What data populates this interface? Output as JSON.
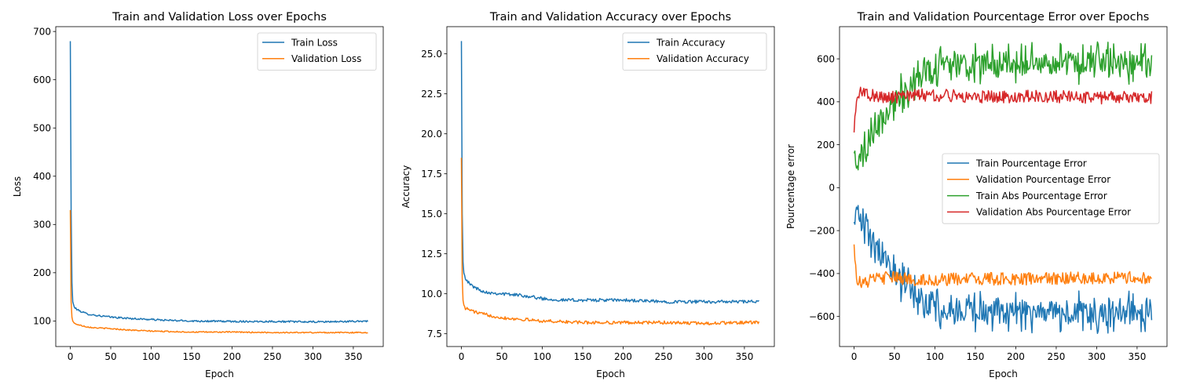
{
  "colors": {
    "blue": "#1f77b4",
    "orange": "#ff7f0e",
    "green": "#2ca02c",
    "red": "#d62728"
  },
  "chart_data": [
    {
      "type": "line",
      "title": "Train and Validation Loss over Epochs",
      "xlabel": "Epoch",
      "ylabel": "Loss",
      "xlim": [
        -18,
        387
      ],
      "ylim": [
        47,
        710
      ],
      "xticks": [
        0,
        50,
        100,
        150,
        200,
        250,
        300,
        350
      ],
      "yticks": [
        100,
        200,
        300,
        400,
        500,
        600,
        700
      ],
      "grid": false,
      "legend_position": "top-right",
      "series": [
        {
          "name": "Train Loss",
          "color": "#1f77b4",
          "points": [
            [
              0,
              680
            ],
            [
              1,
              330
            ],
            [
              2,
              180
            ],
            [
              3,
              140
            ],
            [
              5,
              128
            ],
            [
              10,
              122
            ],
            [
              20,
              115
            ],
            [
              30,
              112
            ],
            [
              50,
              108
            ],
            [
              75,
              105
            ],
            [
              100,
              103
            ],
            [
              125,
              101
            ],
            [
              150,
              100
            ],
            [
              200,
              99
            ],
            [
              250,
              99
            ],
            [
              300,
              98
            ],
            [
              350,
              99
            ],
            [
              368,
              100
            ]
          ]
        },
        {
          "name": "Validation Loss",
          "color": "#ff7f0e",
          "points": [
            [
              0,
              330
            ],
            [
              1,
              140
            ],
            [
              2,
              108
            ],
            [
              3,
              100
            ],
            [
              5,
              95
            ],
            [
              10,
              92
            ],
            [
              20,
              88
            ],
            [
              30,
              86
            ],
            [
              50,
              84
            ],
            [
              75,
              81
            ],
            [
              100,
              79
            ],
            [
              125,
              78
            ],
            [
              150,
              77
            ],
            [
              200,
              77
            ],
            [
              250,
              76
            ],
            [
              300,
              76
            ],
            [
              350,
              76
            ],
            [
              368,
              76
            ]
          ]
        }
      ]
    },
    {
      "type": "line",
      "title": "Train and Validation Accuracy over Epochs",
      "xlabel": "Epoch",
      "ylabel": "Accuracy",
      "xlim": [
        -18,
        387
      ],
      "ylim": [
        6.7,
        26.7
      ],
      "xticks": [
        0,
        50,
        100,
        150,
        200,
        250,
        300,
        350
      ],
      "yticks": [
        7.5,
        10.0,
        12.5,
        15.0,
        17.5,
        20.0,
        22.5,
        25.0
      ],
      "grid": false,
      "legend_position": "top-right",
      "series": [
        {
          "name": "Train Accuracy",
          "color": "#1f77b4",
          "points": [
            [
              0,
              25.8
            ],
            [
              1,
              15
            ],
            [
              2,
              12
            ],
            [
              3,
              11.3
            ],
            [
              5,
              11.0
            ],
            [
              10,
              10.6
            ],
            [
              20,
              10.3
            ],
            [
              30,
              10.1
            ],
            [
              50,
              10.0
            ],
            [
              75,
              9.9
            ],
            [
              100,
              9.7
            ],
            [
              125,
              9.6
            ],
            [
              150,
              9.6
            ],
            [
              200,
              9.6
            ],
            [
              250,
              9.5
            ],
            [
              300,
              9.5
            ],
            [
              350,
              9.5
            ],
            [
              368,
              9.5
            ]
          ]
        },
        {
          "name": "Validation Accuracy",
          "color": "#ff7f0e",
          "points": [
            [
              0,
              18.5
            ],
            [
              1,
              11
            ],
            [
              2,
              9.6
            ],
            [
              3,
              9.3
            ],
            [
              5,
              9.1
            ],
            [
              10,
              9.0
            ],
            [
              20,
              8.8
            ],
            [
              30,
              8.7
            ],
            [
              50,
              8.5
            ],
            [
              75,
              8.4
            ],
            [
              100,
              8.3
            ],
            [
              125,
              8.25
            ],
            [
              150,
              8.2
            ],
            [
              200,
              8.2
            ],
            [
              250,
              8.2
            ],
            [
              300,
              8.15
            ],
            [
              350,
              8.2
            ],
            [
              368,
              8.2
            ]
          ]
        }
      ]
    },
    {
      "type": "line",
      "title": "Train and Validation Pourcentage Error over Epochs",
      "xlabel": "Epoch",
      "ylabel": "Pourcentage error",
      "xlim": [
        -18,
        387
      ],
      "ylim": [
        -740,
        750
      ],
      "xticks": [
        0,
        50,
        100,
        150,
        200,
        250,
        300,
        350
      ],
      "yticks": [
        -600,
        -400,
        -200,
        0,
        200,
        400,
        600
      ],
      "grid": false,
      "legend_position": "center-right",
      "series": [
        {
          "name": "Train Pourcentage Error",
          "color": "#1f77b4",
          "points": [
            [
              0,
              -150
            ],
            [
              3,
              -80
            ],
            [
              8,
              -160
            ],
            [
              15,
              -200
            ],
            [
              25,
              -260
            ],
            [
              35,
              -330
            ],
            [
              50,
              -400
            ],
            [
              65,
              -460
            ],
            [
              80,
              -510
            ],
            [
              100,
              -560
            ],
            [
              125,
              -570
            ],
            [
              150,
              -575
            ],
            [
              200,
              -580
            ],
            [
              250,
              -580
            ],
            [
              300,
              -580
            ],
            [
              350,
              -580
            ],
            [
              368,
              -600
            ]
          ]
        },
        {
          "name": "Validation Pourcentage Error",
          "color": "#ff7f0e",
          "points": [
            [
              0,
              -260
            ],
            [
              3,
              -420
            ],
            [
              10,
              -450
            ],
            [
              20,
              -430
            ],
            [
              35,
              -420
            ],
            [
              50,
              -420
            ],
            [
              75,
              -430
            ],
            [
              100,
              -430
            ],
            [
              150,
              -425
            ],
            [
              200,
              -425
            ],
            [
              250,
              -425
            ],
            [
              300,
              -420
            ],
            [
              350,
              -420
            ],
            [
              368,
              -420
            ]
          ]
        },
        {
          "name": "Train Abs Pourcentage Error",
          "color": "#2ca02c",
          "points": [
            [
              0,
              150
            ],
            [
              3,
              80
            ],
            [
              8,
              160
            ],
            [
              15,
              200
            ],
            [
              25,
              260
            ],
            [
              35,
              330
            ],
            [
              50,
              400
            ],
            [
              65,
              460
            ],
            [
              80,
              510
            ],
            [
              100,
              560
            ],
            [
              125,
              570
            ],
            [
              150,
              575
            ],
            [
              200,
              580
            ],
            [
              250,
              580
            ],
            [
              300,
              580
            ],
            [
              350,
              580
            ],
            [
              368,
              600
            ]
          ]
        },
        {
          "name": "Validation Abs Pourcentage Error",
          "color": "#d62728",
          "points": [
            [
              0,
              260
            ],
            [
              3,
              420
            ],
            [
              10,
              450
            ],
            [
              20,
              430
            ],
            [
              35,
              420
            ],
            [
              50,
              420
            ],
            [
              75,
              430
            ],
            [
              100,
              430
            ],
            [
              150,
              425
            ],
            [
              200,
              425
            ],
            [
              250,
              425
            ],
            [
              300,
              420
            ],
            [
              350,
              420
            ],
            [
              368,
              420
            ]
          ]
        }
      ]
    }
  ]
}
